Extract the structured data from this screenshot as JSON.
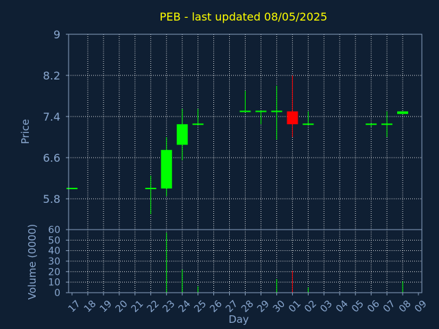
{
  "chart_data": {
    "type": "candlestick",
    "title": "PEB - last updated 08/05/2025",
    "price_axis": {
      "label": "Price",
      "ylim": [
        5.2,
        9.0
      ],
      "ticks": [
        "9",
        "8.2",
        "7.4",
        "6.6",
        "5.8"
      ],
      "tick_values": [
        9.0,
        8.2,
        7.4,
        6.6,
        5.8
      ]
    },
    "volume_axis": {
      "label": "Volume (0000)",
      "ylim": [
        0,
        60
      ],
      "ticks": [
        "60",
        "50",
        "40",
        "30",
        "20",
        "10",
        "0"
      ],
      "tick_values": [
        60,
        50,
        40,
        30,
        20,
        10,
        0
      ]
    },
    "xlabel": "Day",
    "x_ticks": [
      "17",
      "18",
      "19",
      "20",
      "21",
      "22",
      "23",
      "24",
      "25",
      "26",
      "27",
      "28",
      "29",
      "30",
      "01",
      "02",
      "03",
      "04",
      "05",
      "06",
      "07",
      "08",
      "09"
    ],
    "colors": {
      "up": "#00ff00",
      "down": "#ff0000",
      "title": "#ffff00",
      "axis_text": "#89a7cf",
      "background": "#0f1f33"
    },
    "candles": [
      {
        "day": "17",
        "open": 6.0,
        "high": 6.0,
        "low": 6.0,
        "close": 6.0,
        "volume": 0
      },
      {
        "day": "22",
        "open": 6.0,
        "high": 6.25,
        "low": 5.5,
        "close": 6.0,
        "volume": 0
      },
      {
        "day": "23",
        "open": 6.0,
        "high": 7.0,
        "low": 5.85,
        "close": 6.75,
        "volume": 57
      },
      {
        "day": "24",
        "open": 6.85,
        "high": 7.55,
        "low": 6.55,
        "close": 7.25,
        "volume": 22
      },
      {
        "day": "25",
        "open": 7.25,
        "high": 7.55,
        "low": 7.25,
        "close": 7.25,
        "volume": 6
      },
      {
        "day": "28",
        "open": 7.5,
        "high": 7.9,
        "low": 7.5,
        "close": 7.5,
        "volume": 0
      },
      {
        "day": "29",
        "open": 7.5,
        "high": 7.5,
        "low": 7.25,
        "close": 7.5,
        "volume": 0
      },
      {
        "day": "30",
        "open": 7.5,
        "high": 8.0,
        "low": 6.95,
        "close": 7.5,
        "volume": 13
      },
      {
        "day": "01",
        "open": 7.5,
        "high": 8.2,
        "low": 7.0,
        "close": 7.25,
        "volume": 21
      },
      {
        "day": "02",
        "open": 7.25,
        "high": 7.5,
        "low": 7.25,
        "close": 7.25,
        "volume": 5
      },
      {
        "day": "06",
        "open": 7.25,
        "high": 7.25,
        "low": 7.2,
        "close": 7.25,
        "volume": 0
      },
      {
        "day": "07",
        "open": 7.25,
        "high": 7.5,
        "low": 7.0,
        "close": 7.25,
        "volume": 0
      },
      {
        "day": "08",
        "open": 7.45,
        "high": 7.5,
        "low": 7.45,
        "close": 7.5,
        "volume": 11
      }
    ]
  }
}
